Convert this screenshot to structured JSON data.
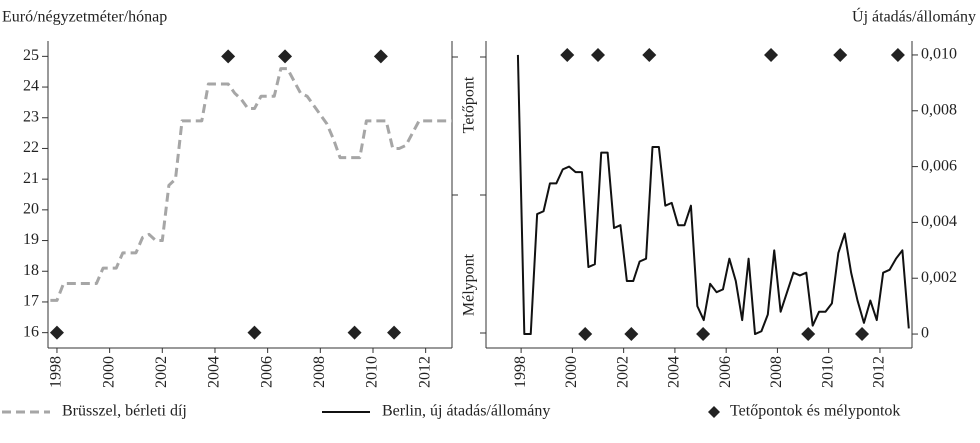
{
  "chart_data": [
    {
      "type": "line",
      "ylabel": "Euró/négyzetméter/hónap",
      "xlim": [
        1997.66,
        2013.0
      ],
      "xticks": [
        1998,
        2000,
        2002,
        2004,
        2006,
        2008,
        2010,
        2012
      ],
      "ylim": [
        15.5,
        25.5
      ],
      "yticks": [
        16,
        17,
        18,
        19,
        20,
        21,
        22,
        23,
        24,
        25
      ],
      "axis_side": "left",
      "series": [
        {
          "name": "Brüsszel, bérleti díj",
          "color": "#a6a6a6",
          "dashed": true,
          "x": [
            1997.75,
            1998,
            1998.25,
            1998.5,
            1998.75,
            1999,
            1999.25,
            1999.5,
            1999.75,
            2000,
            2000.25,
            2000.5,
            2000.75,
            2001,
            2001.25,
            2001.5,
            2001.75,
            2002,
            2002.25,
            2002.5,
            2002.75,
            2003,
            2003.25,
            2003.5,
            2003.75,
            2004,
            2004.25,
            2004.5,
            2004.75,
            2005,
            2005.25,
            2005.5,
            2005.75,
            2006,
            2006.25,
            2006.5,
            2006.75,
            2007,
            2007.25,
            2007.5,
            2007.75,
            2008,
            2008.25,
            2008.5,
            2008.75,
            2009,
            2009.25,
            2009.5,
            2009.75,
            2010,
            2010.25,
            2010.5,
            2010.75,
            2011,
            2011.25,
            2011.5,
            2011.75,
            2012,
            2012.25,
            2012.5,
            2012.75,
            2013
          ],
          "values": [
            17.05,
            17.05,
            17.6,
            17.6,
            17.6,
            17.6,
            17.6,
            17.6,
            18.1,
            18.1,
            18.1,
            18.6,
            18.6,
            18.6,
            19.1,
            19.2,
            19.0,
            19.0,
            20.8,
            21.0,
            22.9,
            22.9,
            22.9,
            22.9,
            24.1,
            24.1,
            24.1,
            24.1,
            23.8,
            23.6,
            23.3,
            23.3,
            23.7,
            23.7,
            23.7,
            24.6,
            24.6,
            24.2,
            23.8,
            23.7,
            23.4,
            23.1,
            22.8,
            22.3,
            21.7,
            21.7,
            21.7,
            21.7,
            22.9,
            22.9,
            22.9,
            22.9,
            22.0,
            22.0,
            22.1,
            22.5,
            22.9,
            22.9,
            22.9,
            22.9,
            22.9,
            22.9
          ]
        },
        {
          "name": "Tetőpontok és mélypontok",
          "color": "#222222",
          "marker": "diamond",
          "x": [
            2004.5,
            2006.66,
            2010.3,
            1998,
            2005.5,
            2009.3,
            2010.8
          ],
          "values": [
            25,
            25,
            25,
            16,
            16,
            16,
            16
          ]
        }
      ]
    },
    {
      "type": "line",
      "y2label": "Új átadás/állomány",
      "annotations": [
        "Tetőpont",
        "Mélypont"
      ],
      "xlim": [
        1996.63,
        2013.25
      ],
      "xticks": [
        1998,
        2000,
        2002,
        2004,
        2006,
        2008,
        2010,
        2012
      ],
      "y2lim": [
        -0.0005,
        0.0105
      ],
      "y2ticks": [
        0,
        {
          "value": 0.002,
          "label": "0,002"
        },
        {
          "value": 0.004,
          "label": "0,004"
        },
        {
          "value": 0.006,
          "label": "0,006"
        },
        {
          "value": 0.008,
          "label": "0,008"
        },
        {
          "value": 0.01,
          "label": "0,010"
        }
      ],
      "series": [
        {
          "name": "Berlin, új átadás/állomány",
          "color": "#111111",
          "axis": "y2",
          "x": [
            1997.875,
            1998.125,
            1998.375,
            1998.625,
            1998.875,
            1999.125,
            1999.375,
            1999.625,
            1999.875,
            2000.125,
            2000.375,
            2000.625,
            2000.875,
            2001.125,
            2001.375,
            2001.625,
            2001.875,
            2002.125,
            2002.375,
            2002.625,
            2002.875,
            2003.125,
            2003.375,
            2003.625,
            2003.875,
            2004.125,
            2004.375,
            2004.625,
            2004.875,
            2005.125,
            2005.375,
            2005.625,
            2005.875,
            2006.125,
            2006.375,
            2006.625,
            2006.875,
            2007.125,
            2007.375,
            2007.625,
            2007.875,
            2008.125,
            2008.375,
            2008.625,
            2008.875,
            2009.125,
            2009.375,
            2009.625,
            2009.875,
            2010.125,
            2010.375,
            2010.625,
            2010.875,
            2011.125,
            2011.375,
            2011.625,
            2011.875,
            2012.125,
            2012.375,
            2012.625,
            2012.875,
            2013.125
          ],
          "values": [
            0.01,
            0,
            0,
            0.0043,
            0.0044,
            0.0054,
            0.0054,
            0.0059,
            0.006,
            0.0058,
            0.0058,
            0.0024,
            0.0025,
            0.0065,
            0.0065,
            0.0038,
            0.0039,
            0.0019,
            0.0019,
            0.0026,
            0.0027,
            0.0067,
            0.0067,
            0.0046,
            0.0047,
            0.0039,
            0.0039,
            0.0046,
            0.001,
            0.0005,
            0.0018,
            0.0015,
            0.0016,
            0.0027,
            0.0019,
            0.0005,
            0.0027,
            0,
            0.0001,
            0.0007,
            0.003,
            0.0008,
            0.0015,
            0.0022,
            0.0021,
            0.0022,
            0.0003,
            0.0008,
            0.0008,
            0.0011,
            0.0029,
            0.0036,
            0.0022,
            0.0012,
            0.0004,
            0.0012,
            0.0005,
            0.0022,
            0.0023,
            0.0027,
            0.003,
            0.0002
          ]
        },
        {
          "color": "#222222",
          "marker": "diamond",
          "axis": "y2",
          "x": [
            1999.8,
            2001.0,
            2003.0,
            2007.75,
            2010.45,
            2012.7,
            2000.5,
            2002.3,
            2005.1,
            2009.2,
            2011.3
          ],
          "values": [
            0.01,
            0.01,
            0.01,
            0.01,
            0.01,
            0.01,
            0,
            0,
            0,
            0,
            0
          ]
        }
      ]
    }
  ]
}
